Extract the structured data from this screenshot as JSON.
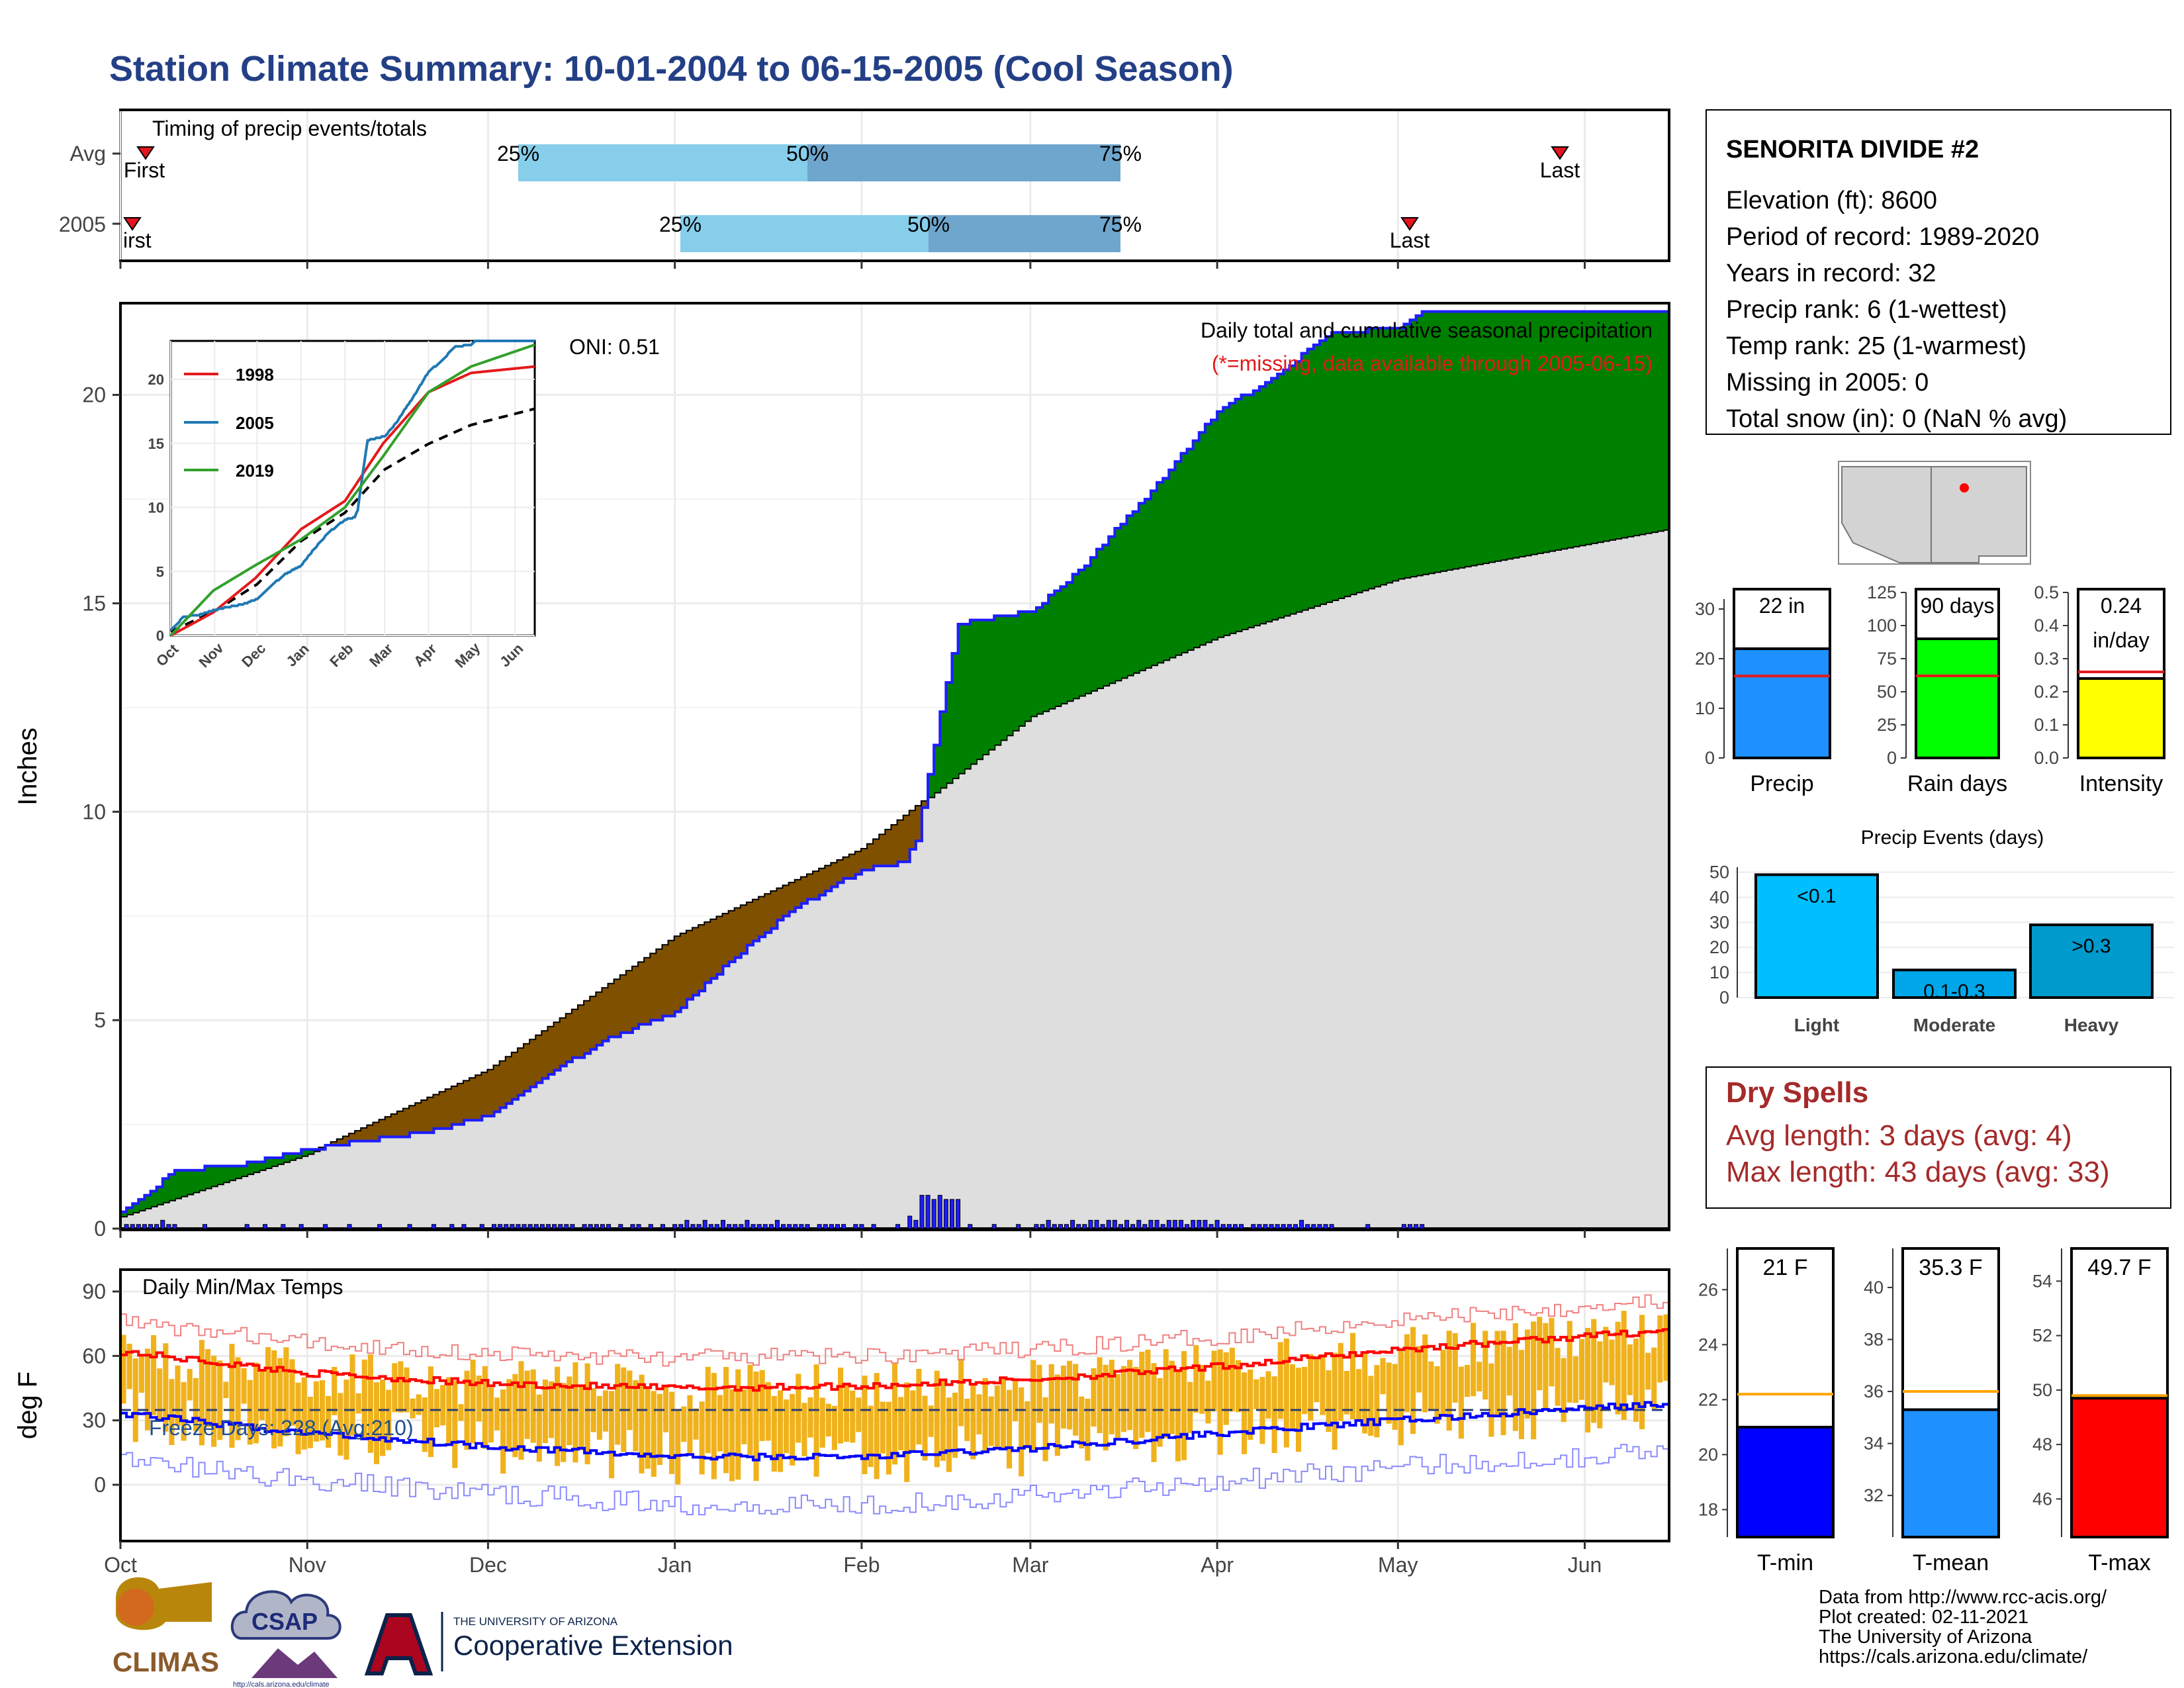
{
  "title": "Station Climate Summary: 10-01-2004 to 06-15-2005 (Cool Season)",
  "colors": {
    "title": "#233f86",
    "light_blue": "#87ceeb",
    "mid_blue": "#6fa6cd",
    "marker": "#e3151e",
    "green": "#008000",
    "brown": "#7f5000",
    "grey_fill": "#dedede",
    "blue_line": "#1d1dff",
    "precip_bar": "#1e90ff",
    "rain_days_bar": "#00ff00",
    "intensity_bar": "#ffff00",
    "avg_line": "#e31a1c",
    "events_light": "#00bfff",
    "events_mod": "#00a7e8",
    "events_heavy": "#009acd",
    "tmin": "#0000ff",
    "tmean": "#1e90ff",
    "tmax": "#ff0000",
    "temp_avg": "#ffa500",
    "dry_spell": "#a52a2a",
    "temp_bar": "#f0b21c"
  },
  "months": [
    "Oct",
    "Nov",
    "Dec",
    "Jan",
    "Feb",
    "Mar",
    "Apr",
    "May",
    "Jun"
  ],
  "timing": {
    "label": "Timing of precip events/totals",
    "rows": [
      "Avg",
      "2005"
    ],
    "p25": "25%",
    "p50": "50%",
    "p75": "75%",
    "first": "First",
    "first_clipped": "irst",
    "last": "Last"
  },
  "main_plot": {
    "title": "Daily total and cumulative seasonal precipitation",
    "missing_note": "(*=missing, data available through 2005-06-15)",
    "oni": "ONI: 0.51",
    "ylabel": "Inches",
    "y_ticks": [
      "0",
      "5",
      "10",
      "15",
      "20"
    ]
  },
  "inset": {
    "legend": [
      "1998",
      "2005",
      "2019"
    ],
    "y_ticks": [
      "0",
      "5",
      "10",
      "15",
      "20"
    ],
    "x_ticks": [
      "Oct",
      "Nov",
      "Dec",
      "Jan",
      "Feb",
      "Mar",
      "Apr",
      "May",
      "Jun"
    ]
  },
  "temp_plot": {
    "title": "Daily Min/Max Temps",
    "freeze": "Freeze Days: 228 (Avg:210)",
    "ylabel": "deg F",
    "y_ticks": [
      "0",
      "30",
      "60",
      "90"
    ]
  },
  "station": {
    "name": "SENORITA DIVIDE #2",
    "lines": [
      "Elevation (ft): 8600",
      "Period of record: 1989-2020",
      "Years in record: 32",
      "Precip rank: 6 (1-wettest)",
      "Temp rank: 25 (1-warmest)",
      "Missing in 2005: 0",
      "Total snow (in): 0 (NaN % avg)"
    ]
  },
  "summary_bars": {
    "precip": {
      "label": "Precip",
      "value_text": "22 in",
      "ticks": [
        "0",
        "10",
        "20",
        "30"
      ]
    },
    "rain_days": {
      "label": "Rain days",
      "value_text": "90 days",
      "ticks": [
        "0",
        "25",
        "50",
        "75",
        "100",
        "125"
      ]
    },
    "intensity": {
      "label": "Intensity",
      "value_text": "0.24",
      "value_text2": "in/day",
      "ticks": [
        "0.0",
        "0.1",
        "0.2",
        "0.3",
        "0.4",
        "0.5"
      ]
    }
  },
  "events": {
    "title": "Precip Events (days)",
    "ticks": [
      "0",
      "10",
      "20",
      "30",
      "40",
      "50"
    ],
    "categories": [
      "Light",
      "Moderate",
      "Heavy"
    ],
    "labels": [
      "<0.1",
      "0.1-0.3",
      ">0.3"
    ]
  },
  "dry_spells": {
    "title": "Dry Spells",
    "avg": "Avg length: 3 days (avg: 4)",
    "max": "Max length: 43 days (avg: 33)"
  },
  "temp_bars": {
    "tmin": {
      "label": "T-min",
      "value_text": "21 F",
      "ticks": [
        "18",
        "20",
        "22",
        "24",
        "26"
      ]
    },
    "tmean": {
      "label": "T-mean",
      "value_text": "35.3 F",
      "ticks": [
        "32",
        "34",
        "36",
        "38",
        "40"
      ]
    },
    "tmax": {
      "label": "T-max",
      "value_text": "49.7 F",
      "ticks": [
        "46",
        "48",
        "50",
        "52",
        "54"
      ]
    }
  },
  "footer": {
    "lines": [
      "Data from http://www.rcc-acis.org/",
      "Plot created: 02-11-2021",
      "The University of Arizona",
      "https://cals.arizona.edu/climate/"
    ],
    "logo_climas": "CLIMAS",
    "logo_csap": "CSAP",
    "logo_csap_url": "http://cals.arizona.edu/climate",
    "ua_small": "THE UNIVERSITY OF ARIZONA",
    "ua_big": "Cooperative Extension"
  },
  "chart_data": [
    {
      "type": "bar",
      "title": "Timing of precip events/totals",
      "categories": [
        "Avg",
        "2005"
      ],
      "series": [
        {
          "name": "first",
          "values": [
            "10-07",
            "10-01"
          ]
        },
        {
          "name": "25%",
          "values": [
            "12-10",
            "01-08"
          ]
        },
        {
          "name": "50%",
          "values": [
            "01-27",
            "02-17"
          ]
        },
        {
          "name": "75%",
          "values": [
            "03-18",
            "03-18"
          ]
        },
        {
          "name": "last",
          "values": [
            "06-14",
            "05-05"
          ]
        }
      ]
    },
    {
      "type": "area",
      "title": "Daily total and cumulative seasonal precipitation",
      "ylabel": "Inches",
      "ylim": [
        0,
        22.2
      ],
      "series": [
        {
          "name": "cumulative 2005",
          "x": [
            "10-01",
            "10-10",
            "10-20",
            "11-01",
            "11-10",
            "11-20",
            "12-01",
            "12-10",
            "12-20",
            "01-01",
            "01-10",
            "01-20",
            "02-01",
            "02-08",
            "02-10",
            "02-14",
            "02-17",
            "03-01",
            "03-10",
            "03-15",
            "03-20",
            "04-01",
            "04-10",
            "04-20",
            "05-01",
            "05-05",
            "06-15"
          ],
          "values": [
            0.35,
            1.4,
            1.5,
            1.9,
            2.1,
            2.3,
            2.7,
            3.6,
            4.5,
            5.2,
            6.4,
            7.6,
            8.6,
            8.8,
            9.3,
            12.4,
            14.5,
            14.8,
            15.9,
            16.8,
            17.5,
            19.6,
            20.4,
            21.5,
            21.6,
            22.0,
            22.0
          ]
        },
        {
          "name": "cumulative average",
          "x": [
            "10-01",
            "11-01",
            "12-01",
            "01-01",
            "02-01",
            "03-01",
            "04-01",
            "05-01",
            "06-15"
          ],
          "values": [
            0.3,
            1.8,
            3.8,
            7.0,
            9.1,
            12.3,
            14.2,
            15.6,
            16.8
          ]
        }
      ]
    },
    {
      "type": "line",
      "title": "Daily Min/Max Temps",
      "ylabel": "deg F",
      "ylim": [
        -18,
        94
      ],
      "series": [
        {
          "name": "Avg max",
          "x": [
            "10-01",
            "11-01",
            "12-01",
            "01-01",
            "02-01",
            "03-01",
            "04-01",
            "05-01",
            "06-15"
          ],
          "values": [
            62,
            52,
            47,
            45,
            46,
            49,
            55,
            63,
            72
          ]
        },
        {
          "name": "Avg min",
          "x": [
            "10-01",
            "11-01",
            "12-01",
            "01-01",
            "02-01",
            "03-01",
            "04-01",
            "05-01",
            "06-15"
          ],
          "values": [
            33,
            24,
            18,
            13,
            13,
            17,
            24,
            30,
            38
          ]
        }
      ]
    },
    {
      "type": "bar",
      "categories": [
        "Light",
        "Moderate",
        "Heavy"
      ],
      "values": [
        49,
        11,
        29
      ]
    },
    {
      "type": "bar",
      "categories": [
        "Precip",
        "Rain days",
        "Intensity"
      ],
      "values": [
        22,
        90,
        0.24
      ],
      "averages": [
        16.5,
        62,
        0.26
      ]
    },
    {
      "type": "bar",
      "categories": [
        "T-min",
        "T-mean",
        "T-max"
      ],
      "values": [
        21,
        35.3,
        49.7
      ],
      "averages": [
        22.2,
        36,
        49.8
      ]
    }
  ]
}
